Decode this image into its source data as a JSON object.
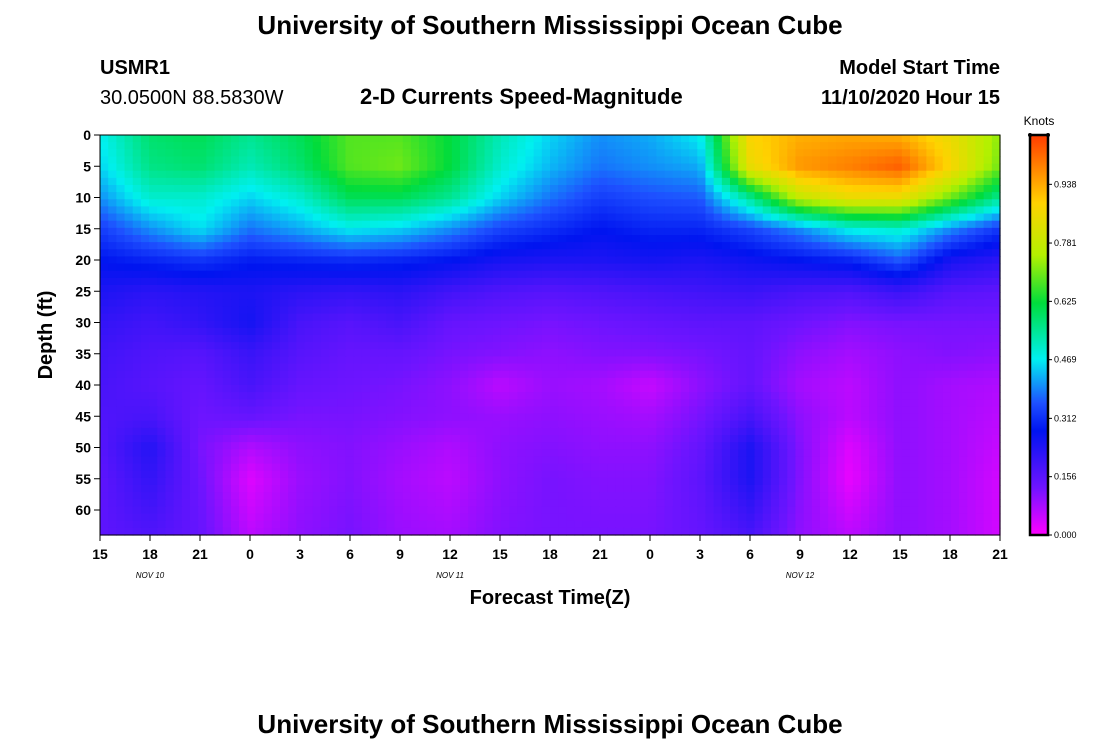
{
  "header": {
    "title": "University of Southern Mississippi Ocean Cube",
    "station_id": "USMR1",
    "coords": "30.0500N 88.5830W",
    "product": "2-D Currents Speed-Magnitude",
    "model_start_label": "Model Start Time",
    "model_start_value": "11/10/2020 Hour 15"
  },
  "footer": {
    "title": "University of Southern Mississippi Ocean Cube"
  },
  "colors": {
    "max": "#ff3c00",
    "high": "#ffd200",
    "mid_high": "#b4f000",
    "mid": "#00dc3c",
    "mid_low": "#00f0f0",
    "low": "#1e50ff",
    "very_low": "#0014f0",
    "near_zero": "#6e14ff",
    "zero": "#ff00ff"
  },
  "chart_data": {
    "type": "heatmap",
    "title": "2-D Currents Speed-Magnitude",
    "xlabel": "Forecast Time(Z)",
    "ylabel": "Depth (ft)",
    "x_ticks": [
      "15",
      "18",
      "21",
      "0",
      "3",
      "6",
      "9",
      "12",
      "15",
      "18",
      "21",
      "0",
      "3",
      "6",
      "9",
      "12",
      "15",
      "18",
      "21"
    ],
    "x_date_labels": [
      {
        "label": "NOV  10",
        "tick_index": 1
      },
      {
        "label": "NOV  11",
        "tick_index": 7
      },
      {
        "label": "NOV  12",
        "tick_index": 14
      }
    ],
    "x_range_hours": [
      0,
      54
    ],
    "y_ticks": [
      0,
      5,
      10,
      15,
      20,
      25,
      30,
      35,
      40,
      45,
      50,
      55,
      60
    ],
    "y_range": [
      0,
      64
    ],
    "colorbar": {
      "unit": "Knots",
      "range": [
        0,
        1.07
      ],
      "tick_values": [
        0.0,
        0.156,
        0.312,
        0.469,
        0.625,
        0.781,
        0.938
      ],
      "tick_labels": [
        "0.000",
        "0.156",
        "0.312",
        "0.469",
        "0.625",
        "0.781",
        "0.938"
      ]
    },
    "grid": {
      "times": [
        0,
        3,
        6,
        9,
        12,
        15,
        18,
        21,
        24,
        27,
        30,
        33,
        36,
        39,
        42,
        45,
        48,
        51,
        54
      ],
      "depths": [
        0,
        5,
        10,
        15,
        20,
        25,
        30,
        35,
        40,
        45,
        50,
        55,
        64
      ],
      "values": [
        [
          0.47,
          0.58,
          0.6,
          0.55,
          0.6,
          0.68,
          0.68,
          0.62,
          0.52,
          0.45,
          0.4,
          0.42,
          0.47,
          0.88,
          0.93,
          0.94,
          0.93,
          0.85,
          0.72
        ],
        [
          0.45,
          0.56,
          0.58,
          0.52,
          0.58,
          0.68,
          0.7,
          0.62,
          0.5,
          0.43,
          0.38,
          0.4,
          0.42,
          0.85,
          0.96,
          0.99,
          1.03,
          0.88,
          0.7
        ],
        [
          0.4,
          0.5,
          0.5,
          0.45,
          0.5,
          0.6,
          0.6,
          0.55,
          0.45,
          0.38,
          0.33,
          0.35,
          0.36,
          0.55,
          0.78,
          0.85,
          0.85,
          0.7,
          0.55
        ],
        [
          0.33,
          0.4,
          0.46,
          0.38,
          0.42,
          0.47,
          0.45,
          0.4,
          0.34,
          0.31,
          0.28,
          0.3,
          0.3,
          0.34,
          0.4,
          0.48,
          0.5,
          0.4,
          0.32
        ],
        [
          0.28,
          0.3,
          0.32,
          0.29,
          0.3,
          0.31,
          0.3,
          0.28,
          0.25,
          0.24,
          0.24,
          0.25,
          0.24,
          0.26,
          0.28,
          0.3,
          0.36,
          0.25,
          0.22
        ],
        [
          0.24,
          0.22,
          0.23,
          0.24,
          0.22,
          0.21,
          0.22,
          0.19,
          0.17,
          0.16,
          0.17,
          0.18,
          0.19,
          0.2,
          0.18,
          0.17,
          0.2,
          0.16,
          0.15
        ],
        [
          0.21,
          0.19,
          0.21,
          0.25,
          0.18,
          0.16,
          0.18,
          0.14,
          0.13,
          0.12,
          0.13,
          0.14,
          0.15,
          0.15,
          0.13,
          0.11,
          0.12,
          0.12,
          0.12
        ],
        [
          0.19,
          0.17,
          0.16,
          0.2,
          0.16,
          0.14,
          0.14,
          0.12,
          0.11,
          0.1,
          0.11,
          0.11,
          0.12,
          0.14,
          0.1,
          0.08,
          0.1,
          0.11,
          0.1
        ],
        [
          0.18,
          0.16,
          0.14,
          0.18,
          0.14,
          0.13,
          0.12,
          0.1,
          0.06,
          0.09,
          0.08,
          0.05,
          0.1,
          0.14,
          0.08,
          0.06,
          0.1,
          0.08,
          0.07
        ],
        [
          0.17,
          0.18,
          0.13,
          0.14,
          0.12,
          0.12,
          0.11,
          0.1,
          0.09,
          0.1,
          0.09,
          0.08,
          0.12,
          0.18,
          0.1,
          0.06,
          0.1,
          0.08,
          0.06
        ],
        [
          0.16,
          0.23,
          0.12,
          0.07,
          0.1,
          0.11,
          0.09,
          0.07,
          0.1,
          0.11,
          0.1,
          0.1,
          0.14,
          0.24,
          0.11,
          0.03,
          0.1,
          0.08,
          0.05
        ],
        [
          0.15,
          0.21,
          0.13,
          0.03,
          0.09,
          0.11,
          0.08,
          0.06,
          0.1,
          0.12,
          0.11,
          0.11,
          0.15,
          0.24,
          0.11,
          0.02,
          0.1,
          0.08,
          0.04
        ],
        [
          0.15,
          0.17,
          0.14,
          0.06,
          0.1,
          0.12,
          0.09,
          0.08,
          0.11,
          0.12,
          0.12,
          0.12,
          0.14,
          0.18,
          0.1,
          0.06,
          0.1,
          0.08,
          0.04
        ]
      ]
    }
  }
}
